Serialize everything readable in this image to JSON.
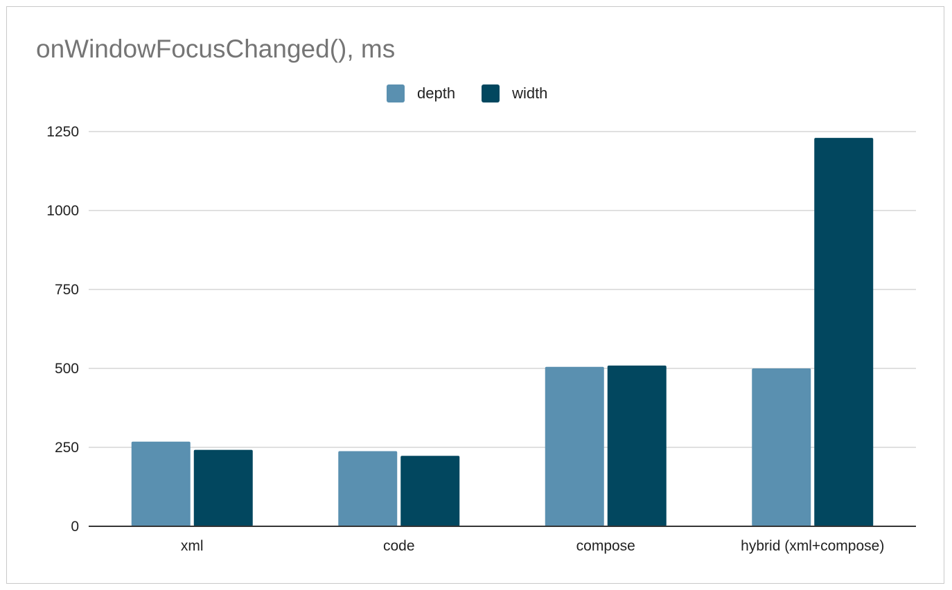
{
  "chart_data": {
    "type": "bar",
    "title": "onWindowFocusChanged(), ms",
    "xlabel": "",
    "ylabel": "",
    "categories": [
      "xml",
      "code",
      "compose",
      "hybrid (xml+compose)"
    ],
    "series": [
      {
        "name": "depth",
        "color": "#5a90b0",
        "values": [
          268,
          238,
          505,
          500
        ]
      },
      {
        "name": "width",
        "color": "#02475f",
        "values": [
          242,
          223,
          509,
          1230
        ]
      }
    ],
    "ylim": [
      0,
      1250
    ],
    "yticks": [
      0,
      250,
      500,
      750,
      1000,
      1250
    ],
    "grid": true,
    "legend_position": "top-center"
  }
}
